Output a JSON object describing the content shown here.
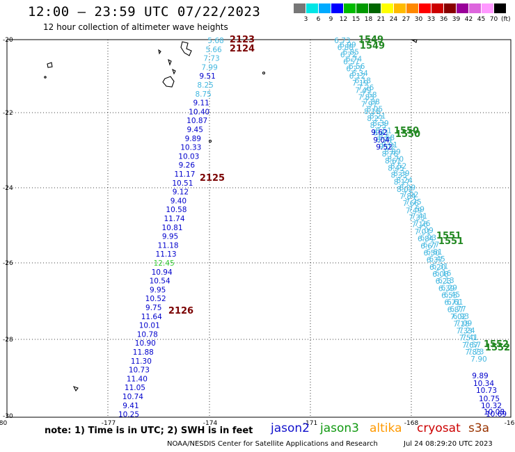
{
  "header": {
    "title": "12:00 – 23:59 UTC 07/22/2023",
    "subtitle": "12 hour collection of altimeter wave heights"
  },
  "legend": {
    "colors": [
      "#777777",
      "#00e5e5",
      "#00aaff",
      "#0000ff",
      "#00bb00",
      "#009900",
      "#006600",
      "#ffff00",
      "#ffbb00",
      "#ff8800",
      "#ff0000",
      "#cc0000",
      "#880000",
      "#990099",
      "#dd66dd",
      "#ff99ff",
      "#000000"
    ],
    "labels": [
      "3",
      "6",
      "9",
      "12",
      "15",
      "18",
      "21",
      "24",
      "27",
      "30",
      "33",
      "36",
      "39",
      "42",
      "45",
      "70"
    ],
    "unit": "(ft)"
  },
  "map_labels": {
    "x_ticks": [
      "-180",
      "-177",
      "-174",
      "-171",
      "-168",
      "-16"
    ],
    "y_ticks": [
      "-20",
      "-22",
      "-24",
      "-26",
      "-28",
      "-30"
    ]
  },
  "tracks": {
    "jason2": {
      "color_light": "#44b8e0",
      "color_dark": "#0000cc",
      "readings": [
        "5.68",
        "5.66",
        "7.73",
        "7.99",
        "9.51",
        "8.25",
        "8.75",
        "9.11",
        "10.40",
        "10.87",
        "9.45",
        "9.89",
        "10.33",
        "10.03",
        "9.26",
        "11.17",
        "10.51",
        "9.12",
        "9.40",
        "10.58",
        "11.74",
        "10.81",
        "9.95",
        "11.18",
        "11.13",
        "12.45",
        "10.94",
        "10.54",
        "9.95",
        "10.52",
        "9.75",
        "11.64",
        "10.01",
        "10.78",
        "10.90",
        "11.88",
        "11.30",
        "10.73",
        "11.40",
        "11.05",
        "10.74",
        "9.41",
        "10.25"
      ],
      "time_labels": [
        "2123",
        "2124",
        "2125",
        "2126"
      ]
    },
    "jason3": {
      "readings_a": [
        "6.73",
        "6.88",
        "6.72",
        "6.57",
        "6.27",
        "6.12",
        "7.19",
        "7.49",
        "7.83",
        "7.97",
        "8.18",
        "8.27",
        "8.53",
        "8.41",
        "8.94",
        "9.02",
        "8.76",
        "8.61",
        "8.45",
        "8.33",
        "8.17",
        "8.02",
        "7.84",
        "7.66",
        "7.49",
        "7.33",
        "7.16",
        "7.01",
        "6.84",
        "6.67",
        "6.50",
        "6.37",
        "6.20",
        "6.08",
        "6.23",
        "6.39",
        "6.55",
        "6.71",
        "6.87",
        "7.02",
        "7.18",
        "7.33",
        "7.50",
        "7.67",
        "7.83"
      ],
      "readings_b": [
        "6.99",
        "6.85",
        "6.74",
        "6.56",
        "6.34",
        "6.18",
        "7.26",
        "7.58",
        "7.88",
        "8.05",
        "8.21",
        "8.39",
        "8.51",
        "8.68",
        "9.01",
        "8.89",
        "8.70",
        "8.52",
        "8.39",
        "8.24",
        "8.09",
        "7.92",
        "7.75",
        "7.59",
        "7.41",
        "7.26",
        "7.09",
        "6.93",
        "6.77",
        "6.61",
        "6.45",
        "6.31",
        "6.16",
        "6.13",
        "6.29",
        "6.45",
        "6.61",
        "6.77",
        "6.93",
        "7.09",
        "7.24",
        "7.41",
        "7.57",
        "7.73",
        "7.90"
      ],
      "dark_readings": [
        "9.62",
        "9.04",
        "9.52"
      ],
      "tail_readings": [
        "9.89",
        "10.34",
        "10.73",
        "10.75",
        "10.32",
        "10.08",
        "10.69"
      ],
      "time_labels": [
        "1549",
        "1549",
        "1550",
        "1550",
        "1551",
        "1551",
        "1552",
        "1552"
      ],
      "time_color": "#228822"
    }
  },
  "footer": {
    "note": "note:  1) Time is in UTC;  2) SWH is in feet",
    "satellites": [
      {
        "name": "jason2",
        "color": "#1111cc"
      },
      {
        "name": "jason3",
        "color": "#119911"
      },
      {
        "name": "altika",
        "color": "#ff9900"
      },
      {
        "name": "cryosat",
        "color": "#cc0000"
      },
      {
        "name": "s3a",
        "color": "#993300"
      }
    ],
    "credit": "NOAA/NESDIS Center for Satellite Applications and Research",
    "timestamp": "Jul 24 08:29:20 UTC 2023"
  }
}
